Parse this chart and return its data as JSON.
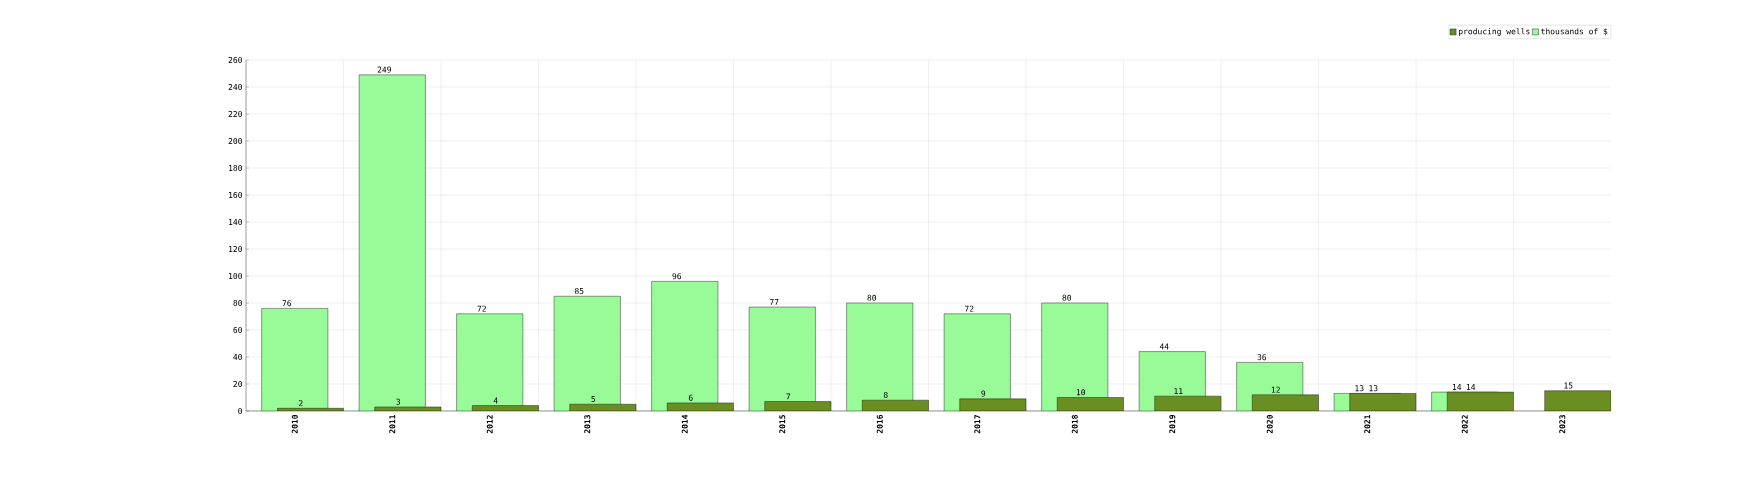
{
  "chart_data": {
    "type": "bar",
    "categories": [
      "2010",
      "2011",
      "2012",
      "2013",
      "2014",
      "2015",
      "2016",
      "2017",
      "2018",
      "2019",
      "2020",
      "2021",
      "2022",
      "2023"
    ],
    "series": [
      {
        "name": "producing wells",
        "color": "#6b8e23",
        "values": [
          2,
          3,
          4,
          5,
          6,
          7,
          8,
          9,
          10,
          11,
          12,
          13,
          14,
          15
        ]
      },
      {
        "name": "thousands of $",
        "color": "#98fb98",
        "values": [
          76,
          249,
          72,
          85,
          96,
          77,
          80,
          72,
          80,
          44,
          36,
          13,
          14,
          null
        ]
      }
    ],
    "ylim": [
      0,
      260
    ],
    "yticks": [
      0,
      20,
      40,
      60,
      80,
      100,
      120,
      140,
      160,
      180,
      200,
      220,
      240,
      260
    ],
    "grid": true,
    "legend": "top right",
    "data_labels": true
  }
}
